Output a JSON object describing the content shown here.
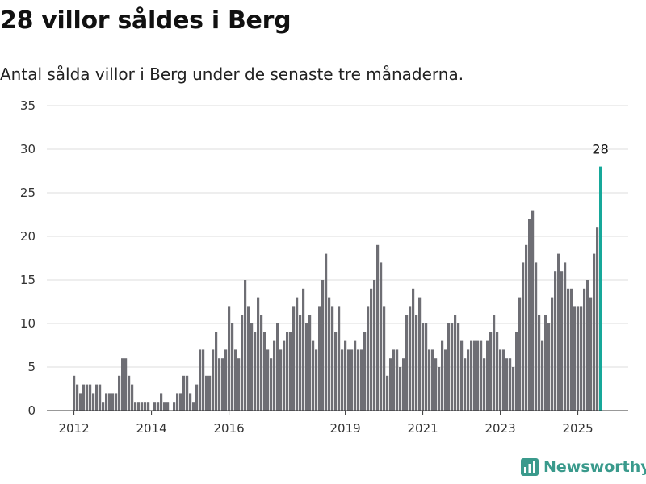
{
  "title": "28 villor såldes i Berg",
  "subtitle": "Antal sålda villor i Berg under de senaste tre månaderna.",
  "brand": {
    "name": "Newsworthy",
    "icon": "newsworthy-logo-icon",
    "color": "#3a9a8c"
  },
  "chart_data": {
    "type": "bar",
    "x_start": "2012-01",
    "interval": "month",
    "x_ticks": [
      "2012",
      "2014",
      "2016",
      "2019",
      "2021",
      "2023",
      "2025"
    ],
    "x_tick_months": [
      "2012-01",
      "2014-01",
      "2016-01",
      "2019-01",
      "2021-01",
      "2023-01",
      "2025-01"
    ],
    "y_ticks": [
      0,
      5,
      10,
      15,
      20,
      25,
      30,
      35
    ],
    "ylim": [
      0,
      35
    ],
    "grid": true,
    "bar_color": "#6e6e74",
    "highlight_color": "#16a89a",
    "highlight_label": "28",
    "values": [
      4,
      3,
      2,
      3,
      3,
      3,
      2,
      3,
      3,
      1,
      2,
      2,
      2,
      2,
      4,
      6,
      6,
      4,
      3,
      1,
      1,
      1,
      1,
      1,
      0,
      1,
      1,
      2,
      1,
      1,
      0,
      1,
      2,
      2,
      4,
      4,
      2,
      1,
      3,
      7,
      7,
      4,
      4,
      7,
      9,
      6,
      6,
      7,
      12,
      10,
      7,
      6,
      11,
      15,
      12,
      10,
      9,
      13,
      11,
      9,
      7,
      6,
      8,
      10,
      7,
      8,
      9,
      9,
      12,
      13,
      11,
      14,
      10,
      11,
      8,
      7,
      12,
      15,
      18,
      13,
      12,
      9,
      12,
      7,
      8,
      7,
      7,
      8,
      7,
      7,
      9,
      12,
      14,
      15,
      19,
      17,
      12,
      4,
      6,
      7,
      7,
      5,
      6,
      11,
      12,
      14,
      11,
      13,
      10,
      10,
      7,
      7,
      6,
      5,
      8,
      7,
      10,
      10,
      11,
      10,
      8,
      6,
      7,
      8,
      8,
      8,
      8,
      6,
      8,
      9,
      11,
      9,
      7,
      7,
      6,
      6,
      5,
      9,
      13,
      17,
      19,
      22,
      23,
      17,
      11,
      8,
      11,
      10,
      13,
      16,
      18,
      16,
      17,
      14,
      14,
      12,
      12,
      12,
      14,
      15,
      13,
      18,
      21,
      28
    ]
  }
}
